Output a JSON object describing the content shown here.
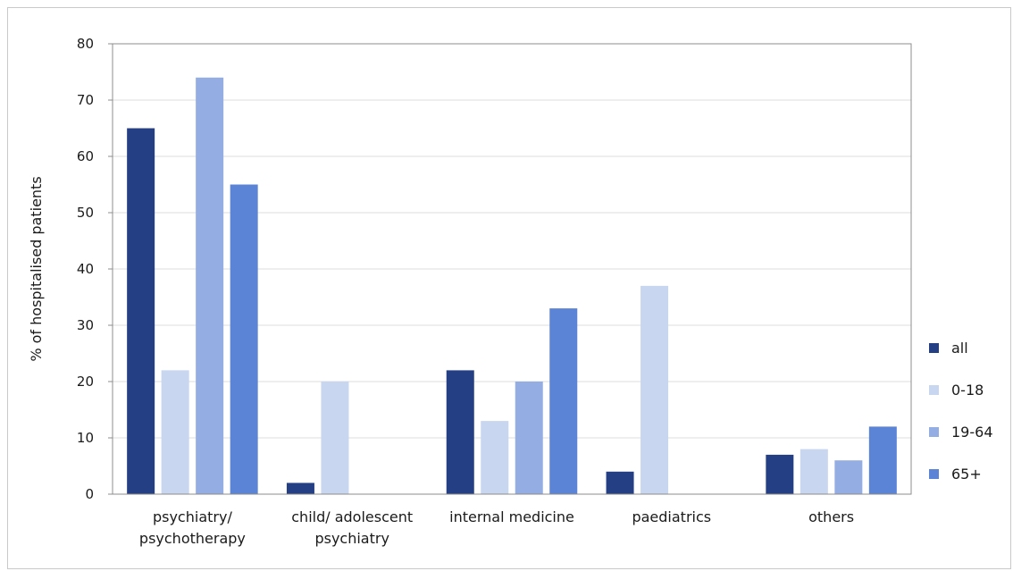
{
  "chart_data": {
    "type": "bar",
    "title": "",
    "xlabel": "",
    "ylabel": "% of hospitalised patients",
    "ylim": [
      0,
      80
    ],
    "yticks": [
      0,
      10,
      20,
      30,
      40,
      50,
      60,
      70,
      80
    ],
    "grid": true,
    "legend_position": "right",
    "categories": [
      [
        "psychiatry/",
        "psychotherapy"
      ],
      [
        "child/ adolescent",
        "psychiatry"
      ],
      [
        "internal medicine"
      ],
      [
        "paediatrics"
      ],
      [
        "others"
      ]
    ],
    "series": [
      {
        "name": "all",
        "color": "#253f85",
        "values": [
          65,
          2,
          22,
          4,
          7
        ]
      },
      {
        "name": "0-18",
        "color": "#c9d6ef",
        "values": [
          22,
          20,
          13,
          37,
          8
        ]
      },
      {
        "name": "19-64",
        "color": "#94ade3",
        "values": [
          74,
          null,
          20,
          null,
          6
        ]
      },
      {
        "name": "65+",
        "color": "#5b84d6",
        "values": [
          55,
          null,
          33,
          null,
          12
        ]
      }
    ],
    "gridline_color": "#dcdcdc",
    "axis_color": "#8c8c8c"
  }
}
